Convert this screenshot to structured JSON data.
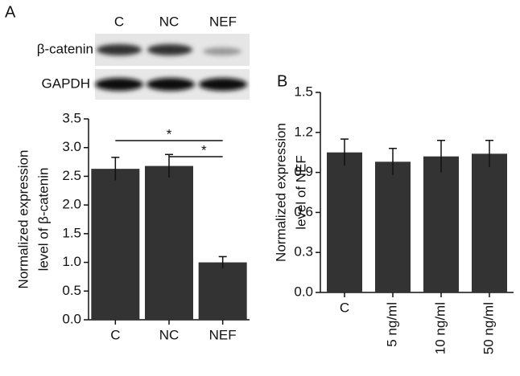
{
  "chart_data": [
    {
      "type": "bar",
      "panel": "A",
      "blot": {
        "lanes": [
          "C",
          "NC",
          "NEF"
        ],
        "rows": [
          "β-catenin",
          "GAPDH"
        ]
      },
      "ylabel": [
        "Normalized expression",
        "level of β-catenin"
      ],
      "categories": [
        "C",
        "NC",
        "NEF"
      ],
      "values": [
        2.63,
        2.68,
        1.0
      ],
      "errors": [
        0.2,
        0.2,
        0.1
      ],
      "color": "#333333",
      "ylim": [
        0,
        3.5
      ],
      "yticks": [
        {
          "value": 0,
          "label": "0.0"
        },
        {
          "value": 0.5,
          "label": "0.5"
        },
        {
          "value": 1,
          "label": "1.0"
        },
        {
          "value": 1.5,
          "label": "1.5"
        },
        {
          "value": 2,
          "label": "2.0"
        },
        {
          "value": 2.5,
          "label": "2.5"
        },
        {
          "value": 3,
          "label": "3.0"
        },
        {
          "value": 3.5,
          "label": "3.5"
        }
      ],
      "annotations": [
        "*",
        "*"
      ]
    },
    {
      "type": "bar",
      "panel": "B",
      "ylabel": [
        "Normalized expression",
        "level of NEF"
      ],
      "categories": [
        "C",
        "5 ng/ml",
        "10 ng/ml",
        "50 ng/ml"
      ],
      "values": [
        1.05,
        0.98,
        1.02,
        1.04
      ],
      "errors": [
        0.1,
        0.1,
        0.12,
        0.1
      ],
      "color": "#333333",
      "ylim": [
        0,
        1.5
      ],
      "yticks": [
        {
          "value": 0,
          "label": "0.0"
        },
        {
          "value": 0.3,
          "label": "0.3"
        },
        {
          "value": 0.6,
          "label": "0.6"
        },
        {
          "value": 0.9,
          "label": "0.9"
        },
        {
          "value": 1.2,
          "label": "1.2"
        },
        {
          "value": 1.5,
          "label": "1.5"
        }
      ]
    }
  ]
}
